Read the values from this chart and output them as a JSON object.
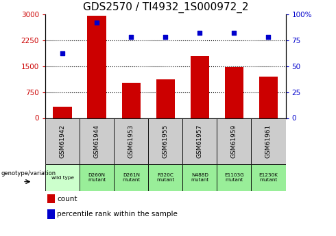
{
  "title": "GDS2570 / TI4932_1S000972_2",
  "samples": [
    "GSM61942",
    "GSM61944",
    "GSM61953",
    "GSM61955",
    "GSM61957",
    "GSM61959",
    "GSM61961"
  ],
  "genotypes": [
    "wild type",
    "D260N\nmutant",
    "D261N\nmutant",
    "R320C\nmutant",
    "N488D\nmutant",
    "E1103G\nmutant",
    "E1230K\nmutant"
  ],
  "counts": [
    320,
    2960,
    1020,
    1120,
    1780,
    1470,
    1200
  ],
  "percentile_ranks": [
    62,
    92,
    78,
    78,
    82,
    82,
    78
  ],
  "bar_color": "#cc0000",
  "dot_color": "#0000cc",
  "left_ylim": [
    0,
    3000
  ],
  "right_ylim": [
    0,
    100
  ],
  "left_yticks": [
    0,
    750,
    1500,
    2250,
    3000
  ],
  "right_yticks": [
    0,
    25,
    50,
    75,
    100
  ],
  "right_yticklabels": [
    "0",
    "25",
    "50",
    "75",
    "100%"
  ],
  "grid_values": [
    750,
    1500,
    2250
  ],
  "bg_color": "#ffffff",
  "sample_bg": "#cccccc",
  "wildtype_bg": "#ccffcc",
  "mutant_bg": "#99ee99",
  "title_fontsize": 11,
  "tick_color_left": "#cc0000",
  "tick_color_right": "#0000cc"
}
